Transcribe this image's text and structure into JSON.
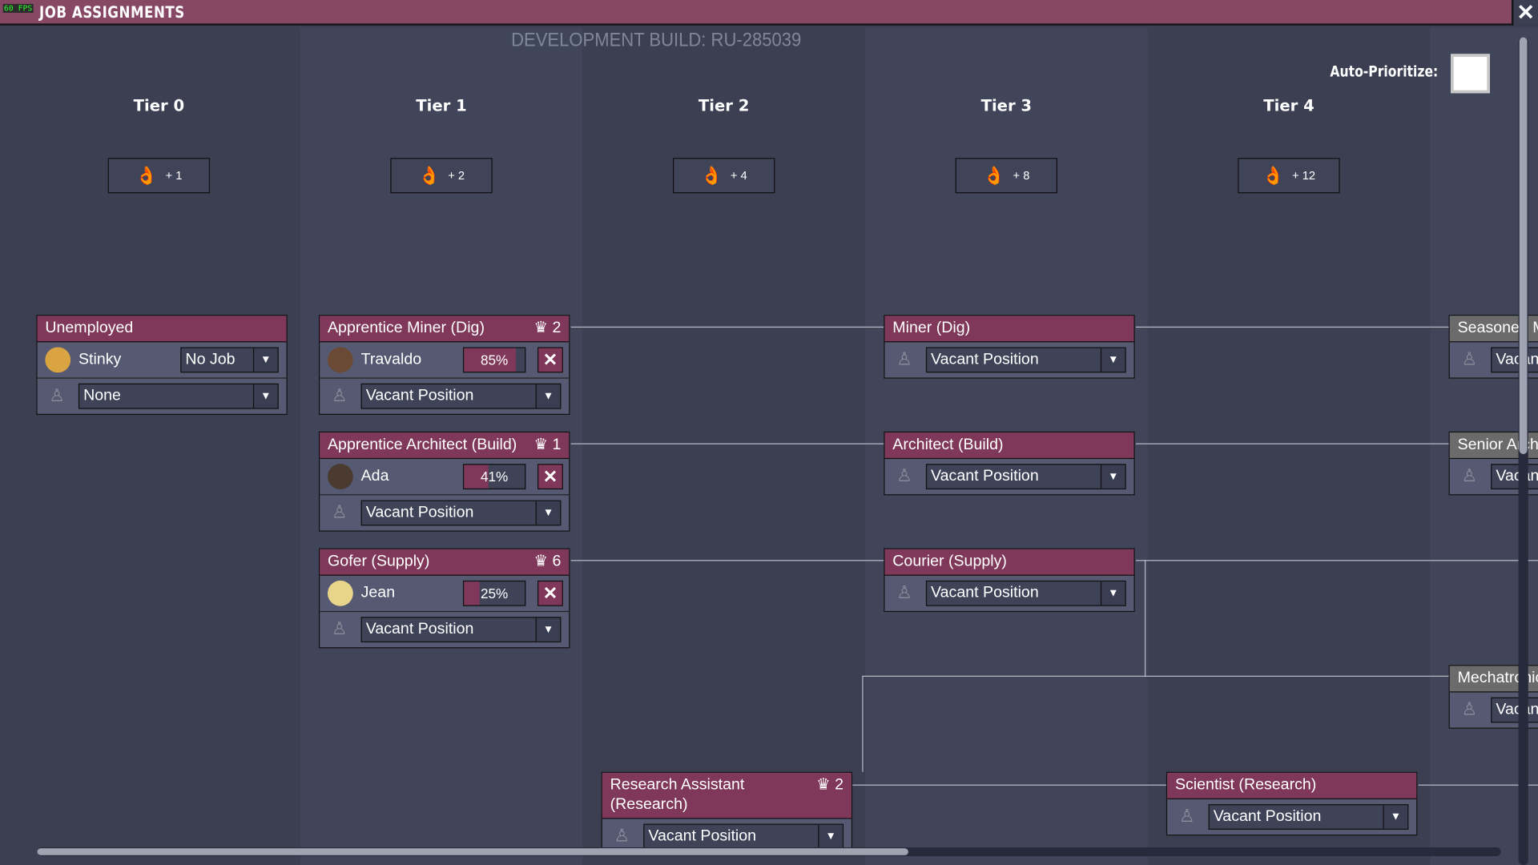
{
  "window": {
    "fps": "60 FPS",
    "title": "JOB ASSIGNMENTS",
    "close_label": "✕"
  },
  "dev_build": "DEVELOPMENT BUILD: RU-285039",
  "auto_prioritize": {
    "label": "Auto-Prioritize:",
    "checked": false
  },
  "tiers": [
    {
      "label": "Tier 0",
      "bonus": "+ 1"
    },
    {
      "label": "Tier 1",
      "bonus": "+ 2"
    },
    {
      "label": "Tier 2",
      "bonus": "+ 4"
    },
    {
      "label": "Tier 3",
      "bonus": "+ 8"
    },
    {
      "label": "Tier 4",
      "bonus": "+ 12"
    }
  ],
  "bonus_icon": "morale-hand-icon",
  "colors": {
    "accent": "#80385a",
    "titlebar": "#874865",
    "background": "#3c3f52",
    "locked": "#6b6b6b"
  },
  "cards": [
    {
      "title": "Unemployed",
      "count": "",
      "tier": 0,
      "y": 0,
      "rows": [
        {
          "type": "person",
          "name": "Stinky",
          "select": "No Job"
        },
        {
          "type": "vacant",
          "select": "None"
        }
      ]
    },
    {
      "title": "Apprentice Miner (Dig)",
      "count": "2",
      "tier": 1,
      "y": 0,
      "rows": [
        {
          "type": "person",
          "name": "Travaldo",
          "percent": 85
        },
        {
          "type": "vacant",
          "select": "Vacant Position"
        }
      ]
    },
    {
      "title": "Apprentice Architect (Build)",
      "count": "1",
      "tier": 1,
      "y": 1,
      "rows": [
        {
          "type": "person",
          "name": "Ada",
          "percent": 41
        },
        {
          "type": "vacant",
          "select": "Vacant Position"
        }
      ]
    },
    {
      "title": "Gofer (Supply)",
      "count": "6",
      "tier": 1,
      "y": 2,
      "rows": [
        {
          "type": "person",
          "name": "Jean",
          "percent": 25
        },
        {
          "type": "vacant",
          "select": "Vacant Position"
        }
      ]
    },
    {
      "title": "Miner (Dig)",
      "count": "",
      "tier": 3,
      "y": 0,
      "rows": [
        {
          "type": "vacant",
          "select": "Vacant Position"
        }
      ]
    },
    {
      "title": "Architect (Build)",
      "count": "",
      "tier": 3,
      "y": 1,
      "rows": [
        {
          "type": "vacant",
          "select": "Vacant Position"
        }
      ]
    },
    {
      "title": "Courier (Supply)",
      "count": "",
      "tier": 3,
      "y": 2,
      "rows": [
        {
          "type": "vacant",
          "select": "Vacant Position"
        }
      ]
    },
    {
      "title": "Research Assistant (Research)",
      "count": "2",
      "tier": 2,
      "y": 4,
      "rows": [
        {
          "type": "vacant",
          "select": "Vacant Position"
        }
      ]
    },
    {
      "title": "Scientist (Research)",
      "count": "",
      "tier": 4,
      "y": 4,
      "rows": [
        {
          "type": "vacant",
          "select": "Vacant Position"
        }
      ]
    },
    {
      "title": "Seasoned Miner",
      "count": "",
      "tier": 5,
      "y": 0,
      "locked": true,
      "rows": [
        {
          "type": "vacant",
          "select": "Vacant Position"
        }
      ]
    },
    {
      "title": "Senior Architect",
      "count": "",
      "tier": 5,
      "y": 1,
      "locked": true,
      "rows": [
        {
          "type": "vacant",
          "select": "Vacant Position"
        }
      ]
    },
    {
      "title": "Mechatronics Engineer",
      "count": "",
      "tier": 5,
      "y": 3,
      "locked": true,
      "rows": [
        {
          "type": "vacant",
          "select": "Vacant Position"
        }
      ]
    }
  ],
  "scroll": {
    "horizontal_visible_fraction": 0.6,
    "horizontal_position": 0,
    "vertical_visible_fraction": 0.5,
    "vertical_position": 0
  }
}
